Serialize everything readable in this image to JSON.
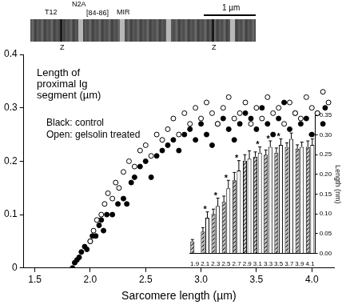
{
  "micrograph": {
    "labels": [
      "T12",
      "N2A",
      "MIR",
      "[84-86]"
    ],
    "scale_bar": "1 µm",
    "z_lines": [
      "Z",
      "Z"
    ]
  },
  "chart_data": [
    {
      "type": "scatter",
      "x_label": "Sarcomere length (µm)",
      "y_label": "Length of proximal Ig segment (µm)",
      "annotations": [
        "Black: control",
        "Open: gelsolin treated"
      ],
      "series": [
        {
          "color": "#000000",
          "marker": "filled",
          "x": [
            1.84,
            1.86,
            1.88,
            1.9,
            1.92,
            1.95,
            1.97,
            2.0,
            2.02,
            2.05,
            2.08,
            2.1,
            2.12,
            2.15,
            2.2,
            2.25,
            2.3,
            2.33,
            2.37,
            2.4,
            2.45,
            2.5,
            2.55,
            2.6,
            2.65,
            2.7,
            2.75,
            2.8,
            2.85,
            2.9,
            2.95,
            3.0,
            3.05,
            3.1,
            3.15,
            3.2,
            3.25,
            3.3,
            3.35,
            3.4,
            3.45,
            3.5,
            3.55,
            3.6,
            3.65,
            3.7,
            3.75,
            3.8,
            3.85,
            3.9,
            3.95,
            4.0,
            4.05,
            4.1,
            4.12
          ],
          "values": [
            0.0,
            0.01,
            0.015,
            0.02,
            0.03,
            0.04,
            0.035,
            0.05,
            0.06,
            0.06,
            0.08,
            0.09,
            0.07,
            0.1,
            0.1,
            0.12,
            0.13,
            0.12,
            0.16,
            0.17,
            0.19,
            0.2,
            0.17,
            0.21,
            0.22,
            0.23,
            0.24,
            0.22,
            0.25,
            0.26,
            0.24,
            0.27,
            0.25,
            0.23,
            0.27,
            0.28,
            0.26,
            0.24,
            0.27,
            0.29,
            0.28,
            0.26,
            0.3,
            0.27,
            0.25,
            0.28,
            0.31,
            0.26,
            0.29,
            0.27,
            0.28,
            0.25,
            0.29,
            0.27,
            0.3
          ]
        },
        {
          "color": "#000000",
          "marker": "open",
          "x": [
            2.0,
            2.03,
            2.06,
            2.1,
            2.13,
            2.16,
            2.2,
            2.23,
            2.26,
            2.3,
            2.35,
            2.4,
            2.45,
            2.5,
            2.55,
            2.6,
            2.65,
            2.7,
            2.75,
            2.8,
            2.85,
            2.9,
            2.95,
            3.0,
            3.05,
            3.1,
            3.15,
            3.2,
            3.25,
            3.3,
            3.35,
            3.4,
            3.45,
            3.5,
            3.55,
            3.6,
            3.65,
            3.7,
            3.75,
            3.8,
            3.85,
            3.9,
            3.95,
            4.0,
            4.05,
            4.1,
            4.15
          ],
          "values": [
            0.05,
            0.07,
            0.09,
            0.1,
            0.12,
            0.14,
            0.13,
            0.16,
            0.15,
            0.18,
            0.2,
            0.19,
            0.22,
            0.23,
            0.21,
            0.25,
            0.24,
            0.26,
            0.28,
            0.25,
            0.29,
            0.27,
            0.3,
            0.28,
            0.31,
            0.29,
            0.27,
            0.3,
            0.32,
            0.28,
            0.29,
            0.31,
            0.27,
            0.3,
            0.28,
            0.32,
            0.29,
            0.3,
            0.27,
            0.31,
            0.29,
            0.28,
            0.32,
            0.3,
            0.29,
            0.33,
            0.31
          ]
        }
      ],
      "xlim": [
        1.4,
        4.2
      ],
      "xticks": [
        1.5,
        {
          "value": 2,
          "label": "2.0"
        },
        2.5,
        {
          "value": 3,
          "label": "3.0"
        },
        3.5,
        {
          "value": 4,
          "label": "4.0"
        }
      ],
      "ylim": [
        0,
        0.4
      ],
      "yticks": [
        0,
        0.1,
        0.2,
        0.3,
        0.4
      ],
      "grid": false
    },
    {
      "type": "bar",
      "y_label": "Length (nm)",
      "categories": [
        "1.9",
        "2.1",
        "2.3",
        "2.5",
        "2.7",
        "2.9",
        "3.1",
        "3.3",
        "3.5",
        "3.7",
        "3.9",
        "4.1"
      ],
      "series": [
        {
          "color": "#000000",
          "marker": "hatched",
          "values": [
            0.03,
            0.055,
            0.1,
            0.13,
            0.185,
            0.235,
            0.245,
            0.25,
            0.255,
            0.27,
            0.265,
            0.27
          ],
          "errors": [
            0.005,
            0.01,
            0.012,
            0.015,
            0.02,
            0.015,
            0.012,
            0.012,
            0.012,
            0.01,
            0.01,
            0.015
          ]
        },
        {
          "color": "#000000",
          "marker": "open",
          "values": [
            null,
            0.09,
            0.12,
            0.165,
            0.21,
            0.24,
            0.255,
            0.27,
            0.275,
            0.29,
            0.27,
            0.275
          ],
          "errors": [
            null,
            0.015,
            0.02,
            0.02,
            0.025,
            0.02,
            0.015,
            0.015,
            0.015,
            0.015,
            0.012,
            0.015
          ]
        }
      ],
      "significance": [
        null,
        "*",
        "*",
        "*",
        "*",
        null,
        "*",
        "*",
        "*",
        null,
        null,
        "*"
      ],
      "ylim": [
        0,
        0.35
      ],
      "yticks": [
        {
          "value": 0,
          "label": "0.00"
        },
        0.05,
        {
          "value": 0.1,
          "label": "0.10"
        },
        0.15,
        {
          "value": 0.2,
          "label": "0.20"
        },
        0.25,
        {
          "value": 0.3,
          "label": "0.30"
        },
        0.35
      ],
      "grid": false
    }
  ]
}
